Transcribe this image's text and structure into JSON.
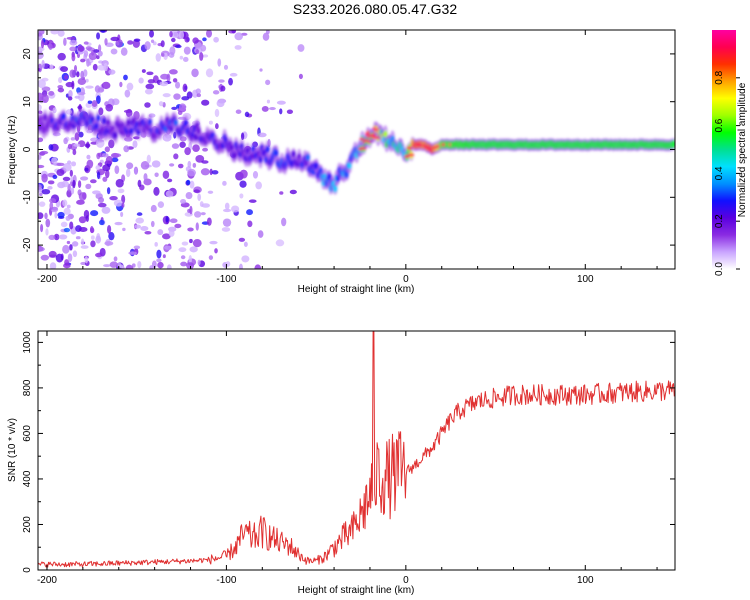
{
  "title": "S233.2026.080.05.47.G32",
  "chart_data": [
    {
      "type": "heatmap",
      "panel": "spectrogram",
      "xlabel": "Height of straight line (km)",
      "ylabel": "Frequency (Hz)",
      "xlim": [
        -205,
        150
      ],
      "ylim": [
        -25,
        25
      ],
      "xticks": [
        -200,
        -100,
        0,
        100
      ],
      "yticks": [
        -20,
        -10,
        0,
        10,
        20
      ],
      "colorbar": {
        "label": "Normalized spectral amplitude",
        "range": [
          0,
          1
        ],
        "ticks": [
          0.0,
          0.2,
          0.4,
          0.6,
          0.8
        ],
        "tick_labels": [
          "0.0",
          "0.2",
          "0.4",
          "0.6",
          "0.8"
        ],
        "colors": [
          "#ffffff",
          "#c9a4ff",
          "#8a2be2",
          "#5a00e0",
          "#1010ff",
          "#0090ff",
          "#00e0ff",
          "#00e090",
          "#00ff00",
          "#a0ff00",
          "#ffff00",
          "#ffa000",
          "#ff3000",
          "#ff0050",
          "#ff00a0"
        ]
      },
      "ridge": {
        "x": [
          -205,
          -190,
          -180,
          -170,
          -160,
          -150,
          -140,
          -130,
          -120,
          -110,
          -100,
          -90,
          -80,
          -70,
          -60,
          -50,
          -45,
          -40,
          -35,
          -30,
          -25,
          -20,
          -15,
          -10,
          -5,
          0,
          5,
          10,
          15,
          20,
          40,
          60,
          80,
          100,
          120,
          150
        ],
        "y": [
          5,
          6,
          6,
          5,
          4,
          5,
          4,
          5,
          4,
          3,
          1,
          -1,
          -1,
          -2,
          -2,
          -4,
          -6,
          -7,
          -5,
          -2,
          1,
          3,
          3,
          2,
          0,
          -1,
          1,
          1,
          0,
          1,
          1,
          1,
          1,
          1,
          1,
          1
        ],
        "amplitude": [
          0.25,
          0.3,
          0.35,
          0.3,
          0.25,
          0.3,
          0.3,
          0.35,
          0.3,
          0.3,
          0.3,
          0.3,
          0.3,
          0.35,
          0.3,
          0.4,
          0.45,
          0.45,
          0.4,
          0.45,
          0.6,
          0.9,
          0.8,
          0.6,
          0.5,
          0.55,
          0.9,
          0.85,
          0.9,
          0.65,
          0.6,
          0.6,
          0.6,
          0.6,
          0.6,
          0.6
        ]
      }
    },
    {
      "type": "line",
      "panel": "snr",
      "xlabel": "Height of straight line (km)",
      "ylabel": "SNR (10 * v/v)",
      "xlim": [
        -205,
        150
      ],
      "ylim": [
        0,
        1050
      ],
      "xticks": [
        -200,
        -100,
        0,
        100
      ],
      "yticks": [
        0,
        200,
        400,
        600,
        800,
        1000
      ],
      "color": "#e03030",
      "envelope": {
        "x": [
          -205,
          -180,
          -160,
          -140,
          -120,
          -110,
          -100,
          -95,
          -90,
          -85,
          -80,
          -75,
          -70,
          -65,
          -60,
          -55,
          -50,
          -45,
          -40,
          -35,
          -30,
          -25,
          -20,
          -18,
          -15,
          -10,
          -5,
          0,
          5,
          10,
          15,
          20,
          25,
          30,
          40,
          60,
          80,
          100,
          120,
          150
        ],
        "y": [
          25,
          25,
          30,
          35,
          40,
          45,
          60,
          100,
          160,
          140,
          170,
          140,
          120,
          110,
          70,
          40,
          40,
          60,
          100,
          140,
          170,
          240,
          330,
          400,
          420,
          400,
          430,
          430,
          460,
          500,
          540,
          600,
          660,
          700,
          740,
          770,
          770,
          770,
          780,
          790
        ]
      },
      "spike": {
        "x": -18,
        "y": 1050
      }
    }
  ]
}
